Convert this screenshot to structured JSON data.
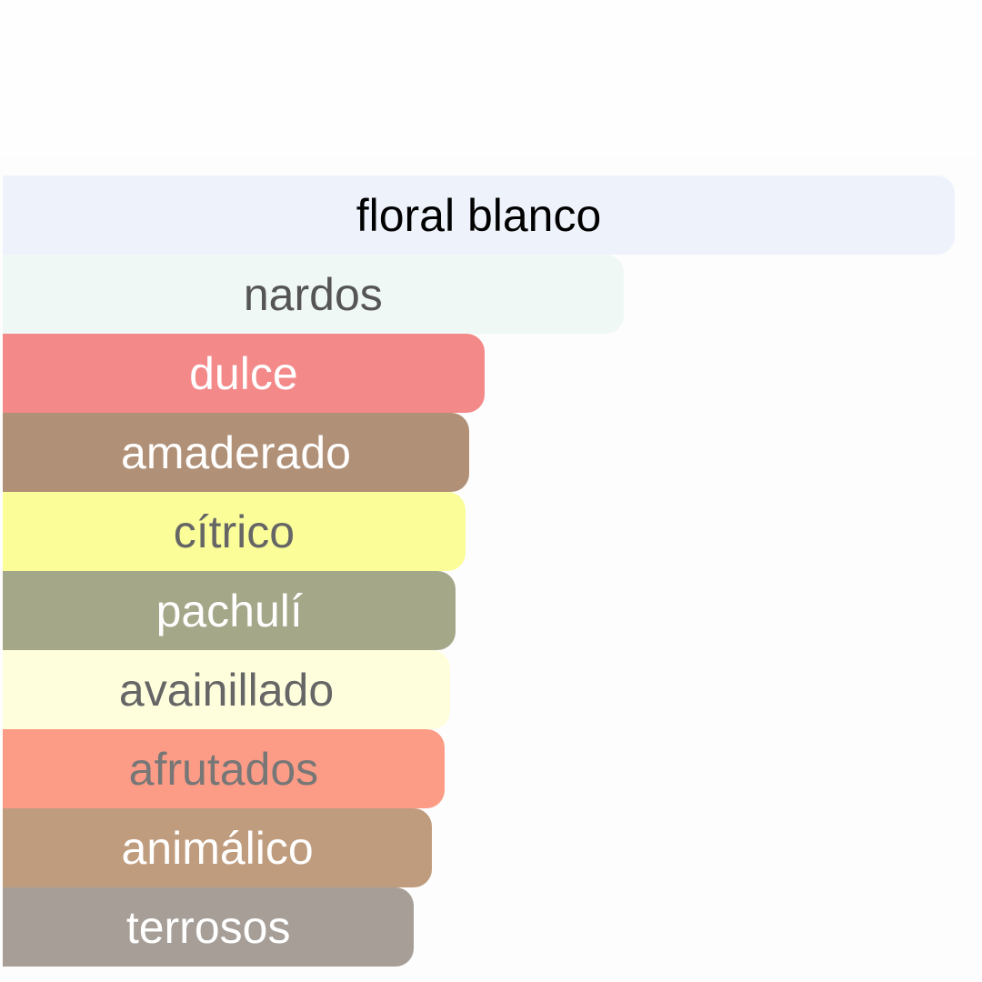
{
  "chart_data": {
    "type": "bar",
    "orientation": "horizontal",
    "categories": [
      "floral blanco",
      "nardos",
      "dulce",
      "amaderado",
      "cítrico",
      "pachulí",
      "avainillado",
      "afrutados",
      "animálico",
      "terrosos"
    ],
    "values": [
      100,
      65.2,
      50.6,
      49.0,
      48.6,
      47.6,
      47.0,
      46.4,
      45.1,
      43.2
    ],
    "colors": [
      "#EEF2FB",
      "#EFF8F4",
      "#F4898A",
      "#B09077",
      "#FAFD98",
      "#A5A789",
      "#FEFEDD",
      "#FC9C86",
      "#C09C7E",
      "#A69E97"
    ],
    "text_colors": [
      "#000000",
      "#555555",
      "#FFFFFF",
      "#FFFFFF",
      "#666666",
      "#FFFFFF",
      "#666666",
      "#777777",
      "#FFFFFF",
      "#FFFFFF"
    ],
    "xlim": [
      0,
      100
    ],
    "grid": false,
    "labels_inside_bars": true
  }
}
